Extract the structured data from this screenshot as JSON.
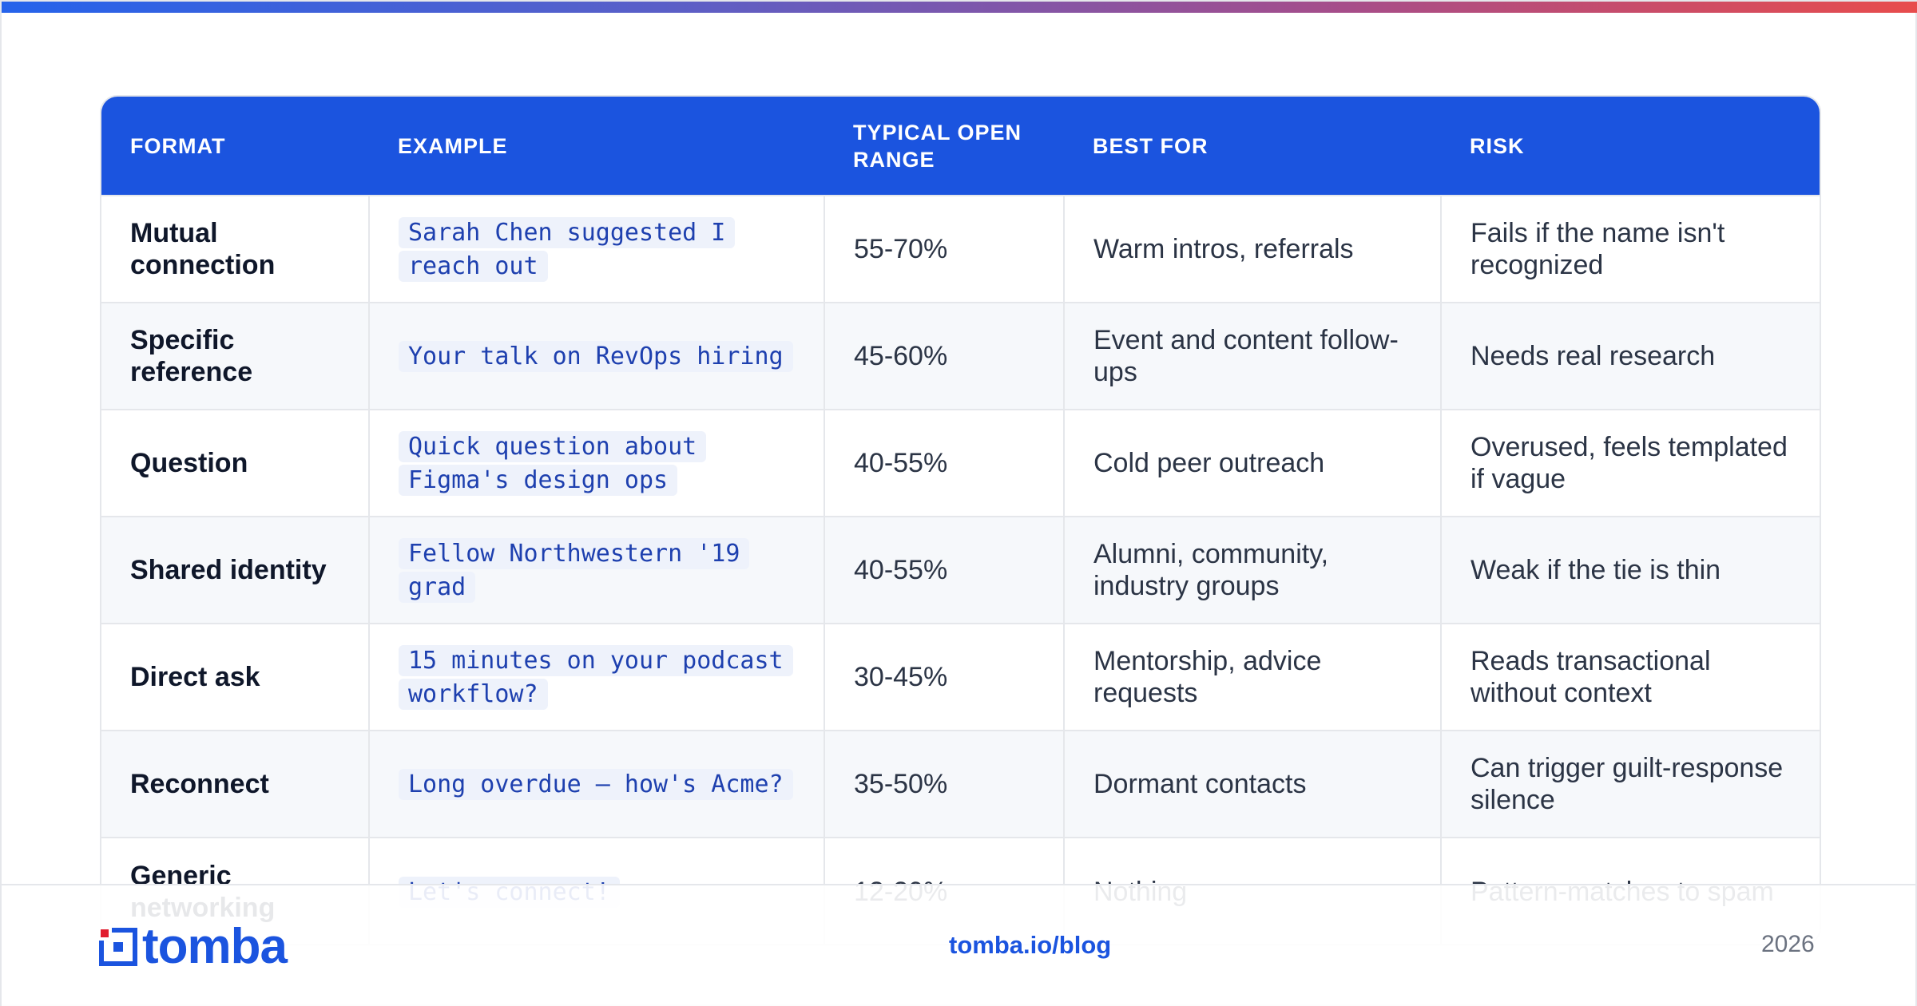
{
  "headers": {
    "format": "FORMAT",
    "example": "EXAMPLE",
    "open_range": "TYPICAL OPEN RANGE",
    "best_for": "BEST FOR",
    "risk": "RISK"
  },
  "rows": [
    {
      "format": "Mutual connection",
      "example": "Sarah Chen suggested I reach out",
      "open_range": "55-70%",
      "best_for": "Warm intros, referrals",
      "risk": "Fails if the name isn't recognized"
    },
    {
      "format": "Specific reference",
      "example": "Your talk on RevOps hiring",
      "open_range": "45-60%",
      "best_for": "Event and content follow-ups",
      "risk": "Needs real research"
    },
    {
      "format": "Question",
      "example": "Quick question about Figma's design ops",
      "open_range": "40-55%",
      "best_for": "Cold peer outreach",
      "risk": "Overused, feels templated if vague"
    },
    {
      "format": "Shared identity",
      "example": "Fellow Northwestern '19 grad",
      "open_range": "40-55%",
      "best_for": "Alumni, community, industry groups",
      "risk": "Weak if the tie is thin"
    },
    {
      "format": "Direct ask",
      "example": "15 minutes on your podcast workflow?",
      "open_range": "30-45%",
      "best_for": "Mentorship, advice requests",
      "risk": "Reads transactional without context"
    },
    {
      "format": "Reconnect",
      "example": "Long overdue — how's Acme?",
      "open_range": "35-50%",
      "best_for": "Dormant contacts",
      "risk": "Can trigger guilt-response silence"
    },
    {
      "format": "Generic networking",
      "example": "Let's connect!",
      "open_range": "12-20%",
      "best_for": "Nothing",
      "risk": "Pattern-matches to spam"
    }
  ],
  "footer": {
    "logo_text": "tomba",
    "link": "tomba.io/blog",
    "year": "2026"
  },
  "colors": {
    "brand_blue": "#1b54df",
    "gradient_start": "#2563eb",
    "gradient_end": "#e84c4c"
  }
}
